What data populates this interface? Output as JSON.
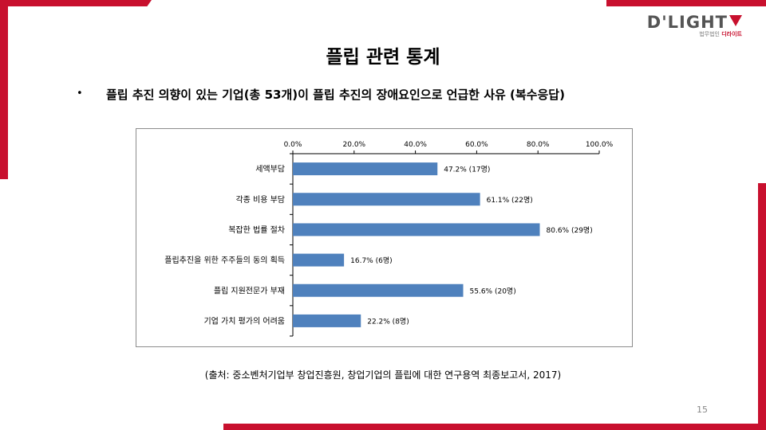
{
  "logo": {
    "main": "D'LIGHT",
    "sub_prefix": "법무법인 ",
    "sub_name": "디라이트"
  },
  "title": "플립 관련 통계",
  "bullet": "•",
  "subtitle": "플립 추진 의향이 있는 기업(총 53개)이 플립 추진의 장애요인으로 언급한 사유 (복수응답)",
  "source": "(출처: 중소벤처기업부 창업진흥원, 창업기업의 플립에 대한 연구용역 최종보고서, 2017)",
  "page_number": "15",
  "colors": {
    "accent": "#c8102e",
    "bar": "#4f81bd"
  },
  "chart_data": {
    "type": "bar",
    "orientation": "horizontal",
    "categories": [
      "세액부담",
      "각종 비용 부담",
      "복잡한 법률 절차",
      "플립추진을 위한 주주들의 동의 획득",
      "플립 지원전문가 부재",
      "기업 가치 평가의 어려움"
    ],
    "values": [
      47.2,
      61.1,
      80.6,
      16.7,
      55.6,
      22.2
    ],
    "data_labels": [
      "47.2% (17명)",
      "61.1% (22명)",
      "80.6% (29명)",
      "16.7% (6명)",
      "55.6% (20명)",
      "22.2% (8명)"
    ],
    "xlim": [
      0,
      100
    ],
    "x_ticks": [
      0,
      20,
      40,
      60,
      80,
      100
    ],
    "x_tick_labels": [
      "0.0%",
      "20.0%",
      "40.0%",
      "60.0%",
      "80.0%",
      "100.0%"
    ],
    "x_axis_position": "top",
    "grid": false
  }
}
